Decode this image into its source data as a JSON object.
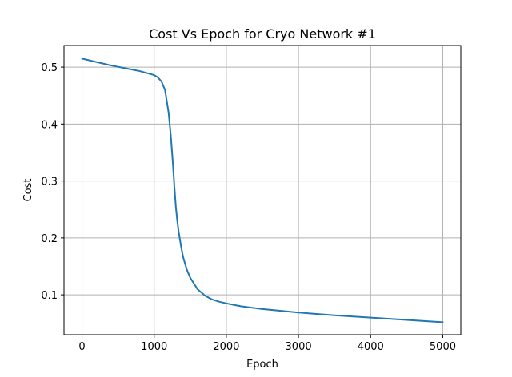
{
  "chart_data": {
    "type": "line",
    "title": "Cost Vs Epoch for Cryo Network #1",
    "xlabel": "Epoch",
    "ylabel": "Cost",
    "xlim": [
      -250,
      5250
    ],
    "ylim": [
      0.03,
      0.538
    ],
    "xticks": [
      0,
      1000,
      2000,
      3000,
      4000,
      5000
    ],
    "yticks": [
      0.1,
      0.2,
      0.3,
      0.4,
      0.5
    ],
    "grid": true,
    "color": "#1f77b4",
    "series": [
      {
        "x": [
          0,
          200,
          400,
          600,
          800,
          1000,
          1050,
          1100,
          1150,
          1200,
          1230,
          1260,
          1280,
          1300,
          1320,
          1340,
          1360,
          1380,
          1400,
          1450,
          1500,
          1600,
          1700,
          1800,
          1900,
          2000,
          2200,
          2500,
          3000,
          3500,
          4000,
          4500,
          5000
        ],
        "values": [
          0.515,
          0.509,
          0.503,
          0.498,
          0.493,
          0.486,
          0.482,
          0.475,
          0.46,
          0.42,
          0.38,
          0.33,
          0.29,
          0.255,
          0.23,
          0.21,
          0.195,
          0.18,
          0.167,
          0.145,
          0.13,
          0.11,
          0.099,
          0.092,
          0.088,
          0.085,
          0.08,
          0.075,
          0.069,
          0.064,
          0.06,
          0.056,
          0.052
        ]
      }
    ]
  }
}
